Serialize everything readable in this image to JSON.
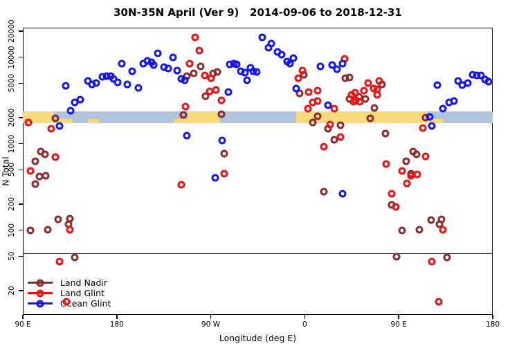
{
  "title": "30N-35N April (Ver 9)   2014-09-06 to 2018-12-31",
  "chart_data": {
    "type": "scatter",
    "title": "30N-35N April (Ver 9)   2014-09-06 to 2018-12-31",
    "xlabel": "Longitude (deg E)",
    "ylabel": "N Total",
    "x_axis": {
      "note": "longitude axis wraps eastward: 90E to 180 to 90W to 0 to 90E to 180, 450 degrees total",
      "ticks": [
        90,
        180,
        270,
        360,
        450,
        540
      ],
      "labels": [
        "90 E",
        "180",
        "90 W",
        "0",
        "90 E",
        "180"
      ],
      "range": [
        90,
        540
      ],
      "grid": false
    },
    "y_axis": {
      "scale": "log10",
      "ticks": [
        20000,
        10000,
        5000,
        2000,
        1000,
        500,
        200,
        100,
        50,
        20
      ],
      "labels": [
        "20000",
        "10000",
        "5000",
        "2000",
        "1000",
        "500",
        "200",
        "100",
        "50",
        "20"
      ],
      "range": [
        10.5,
        21900
      ],
      "grid": false
    },
    "reference_line": {
      "n": 54,
      "color": "#222222"
    },
    "highlight_bands": {
      "n_range": [
        1730,
        2360
      ],
      "blue_segment_lon": [
        90,
        540
      ],
      "blue_color": "#AFC3DF",
      "orange_color": "#FAD97C",
      "orange_segments_lon": [
        [
          90,
          120
        ],
        [
          248,
          279
        ],
        [
          352,
          478
        ]
      ],
      "orange_fringe_segments_lon": [
        [
          121,
          138
        ],
        [
          152,
          163
        ],
        [
          235,
          248
        ],
        [
          478,
          493
        ]
      ],
      "fringe_n_range": [
        1730,
        1930
      ]
    },
    "legend": {
      "position": "bottom-left",
      "items": [
        "Land Nadir",
        "Land Glint",
        "Ocean Glint"
      ]
    },
    "series": [
      {
        "name": "Land Nadir",
        "color": "#8B2C2C",
        "points": [
          [
            121,
            1960
          ],
          [
            107,
            811
          ],
          [
            111,
            753
          ],
          [
            102,
            627
          ],
          [
            106,
            418
          ],
          [
            112,
            426
          ],
          [
            102,
            341
          ],
          [
            124,
            133
          ],
          [
            135,
            136
          ],
          [
            134,
            117
          ],
          [
            97,
            99
          ],
          [
            114,
            101
          ],
          [
            140,
            48
          ],
          [
            260,
            7820
          ],
          [
            247,
            6040
          ],
          [
            254,
            6500
          ],
          [
            272,
            6500
          ],
          [
            276,
            6750
          ],
          [
            265,
            3540
          ],
          [
            280,
            2190
          ],
          [
            244,
            2150
          ],
          [
            283,
            767
          ],
          [
            378,
            279
          ],
          [
            359,
            6270
          ],
          [
            355,
            3810
          ],
          [
            372,
            2080
          ],
          [
            368,
            1760
          ],
          [
            382,
            1490
          ],
          [
            394,
            1630
          ],
          [
            388,
            1110
          ],
          [
            399,
            5710
          ],
          [
            403,
            5820
          ],
          [
            434,
            4840
          ],
          [
            403,
            3290
          ],
          [
            412,
            3480
          ],
          [
            418,
            3290
          ],
          [
            427,
            2590
          ],
          [
            423,
            1960
          ],
          [
            437,
            1310
          ],
          [
            464,
            811
          ],
          [
            467,
            753
          ],
          [
            457,
            627
          ],
          [
            462,
            450
          ],
          [
            443,
            196
          ],
          [
            481,
            131
          ],
          [
            491,
            133
          ],
          [
            489,
            117
          ],
          [
            453,
            99
          ],
          [
            470,
            101
          ],
          [
            448,
            49
          ],
          [
            496,
            48
          ],
          [
            476,
            2000
          ]
        ]
      },
      {
        "name": "Land Glint",
        "color": "#EE1111",
        "points": [
          [
            95,
            1760
          ],
          [
            117,
            1490
          ],
          [
            121,
            700
          ],
          [
            97,
            484
          ],
          [
            125,
            43
          ],
          [
            132,
            15
          ],
          [
            135,
            101
          ],
          [
            255,
            16900
          ],
          [
            259,
            11900
          ],
          [
            250,
            8410
          ],
          [
            264,
            6150
          ],
          [
            270,
            5710
          ],
          [
            269,
            4030
          ],
          [
            275,
            4180
          ],
          [
            280,
            3170
          ],
          [
            246,
            2690
          ],
          [
            283,
            450
          ],
          [
            242,
            335
          ],
          [
            358,
            7000
          ],
          [
            354,
            5710
          ],
          [
            364,
            3950
          ],
          [
            372,
            4100
          ],
          [
            363,
            2540
          ],
          [
            368,
            3000
          ],
          [
            372,
            3110
          ],
          [
            388,
            2540
          ],
          [
            384,
            1660
          ],
          [
            394,
            1190
          ],
          [
            378,
            923
          ],
          [
            407,
            3050
          ],
          [
            398,
            9570
          ],
          [
            421,
            5020
          ],
          [
            431,
            5310
          ],
          [
            429,
            4260
          ],
          [
            417,
            4100
          ],
          [
            405,
            3670
          ],
          [
            408,
            3880
          ],
          [
            409,
            3170
          ],
          [
            413,
            3050
          ],
          [
            426,
            4330
          ],
          [
            429,
            3670
          ],
          [
            438,
            582
          ],
          [
            443,
            264
          ],
          [
            447,
            186
          ],
          [
            453,
            484
          ],
          [
            462,
            426
          ],
          [
            468,
            442
          ],
          [
            458,
            348
          ],
          [
            476,
            713
          ],
          [
            473,
            1520
          ],
          [
            482,
            43
          ],
          [
            488,
            15
          ],
          [
            492,
            101
          ]
        ]
      },
      {
        "name": "Ocean Glint",
        "color": "#1414EE",
        "points": [
          [
            125,
            1600
          ],
          [
            131,
            4670
          ],
          [
            136,
            2400
          ],
          [
            140,
            3000
          ],
          [
            145,
            3230
          ],
          [
            152,
            5310
          ],
          [
            156,
            4840
          ],
          [
            160,
            5020
          ],
          [
            166,
            5930
          ],
          [
            170,
            6040
          ],
          [
            174,
            6040
          ],
          [
            177,
            5610
          ],
          [
            181,
            5120
          ],
          [
            185,
            8410
          ],
          [
            190,
            4840
          ],
          [
            195,
            6870
          ],
          [
            201,
            4420
          ],
          [
            205,
            8410
          ],
          [
            209,
            9060
          ],
          [
            213,
            8730
          ],
          [
            215,
            8110
          ],
          [
            219,
            11100
          ],
          [
            225,
            7670
          ],
          [
            229,
            7390
          ],
          [
            234,
            9930
          ],
          [
            238,
            7000
          ],
          [
            242,
            5610
          ],
          [
            245,
            5410
          ],
          [
            287,
            3950
          ],
          [
            288,
            8260
          ],
          [
            292,
            8410
          ],
          [
            295,
            8260
          ],
          [
            299,
            6870
          ],
          [
            303,
            6620
          ],
          [
            305,
            5410
          ],
          [
            308,
            7530
          ],
          [
            311,
            6870
          ],
          [
            314,
            6750
          ],
          [
            319,
            16900
          ],
          [
            325,
            12900
          ],
          [
            328,
            14400
          ],
          [
            334,
            11500
          ],
          [
            338,
            10700
          ],
          [
            343,
            8900
          ],
          [
            346,
            8410
          ],
          [
            349,
            9750
          ],
          [
            352,
            4330
          ],
          [
            375,
            7820
          ],
          [
            386,
            8110
          ],
          [
            391,
            7260
          ],
          [
            396,
            8410
          ],
          [
            382,
            2790
          ],
          [
            247,
            1240
          ],
          [
            281,
            1090
          ],
          [
            274,
            403
          ],
          [
            396,
            264
          ],
          [
            480,
            2040
          ],
          [
            482,
            1600
          ],
          [
            487,
            4750
          ],
          [
            492,
            2540
          ],
          [
            498,
            3000
          ],
          [
            503,
            3110
          ],
          [
            507,
            5310
          ],
          [
            511,
            4750
          ],
          [
            516,
            5020
          ],
          [
            521,
            6270
          ],
          [
            525,
            6150
          ],
          [
            529,
            6150
          ],
          [
            533,
            5510
          ],
          [
            536,
            5210
          ]
        ]
      }
    ]
  }
}
